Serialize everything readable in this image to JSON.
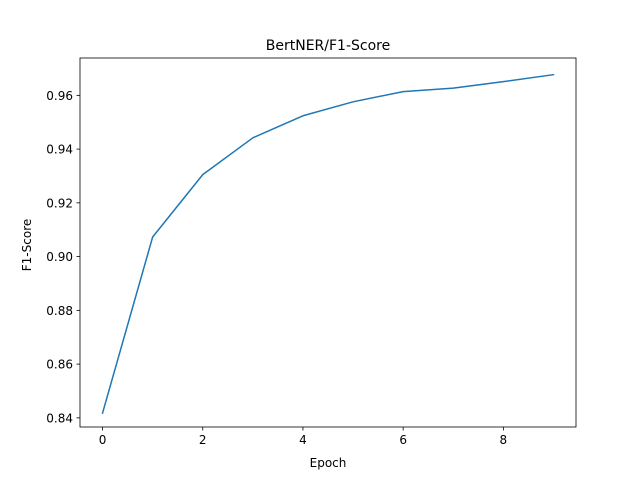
{
  "chart_data": {
    "type": "line",
    "title": "BertNER/F1-Score",
    "xlabel": "Epoch",
    "ylabel": "F1-Score",
    "xlim": [
      -0.45,
      9.45
    ],
    "ylim": [
      0.8366,
      0.9739
    ],
    "xticks": [
      0,
      2,
      4,
      6,
      8
    ],
    "xtick_labels": [
      "0",
      "2",
      "4",
      "6",
      "8"
    ],
    "yticks": [
      0.84,
      0.86,
      0.88,
      0.9,
      0.92,
      0.94,
      0.96
    ],
    "ytick_labels": [
      "0.84",
      "0.86",
      "0.88",
      "0.90",
      "0.92",
      "0.94",
      "0.96"
    ],
    "grid": false,
    "series": [
      {
        "x": [
          0,
          1,
          2,
          3,
          4,
          5,
          6,
          7,
          8,
          9
        ],
        "values": [
          0.8418,
          0.9073,
          0.9305,
          0.9442,
          0.9524,
          0.9576,
          0.9614,
          0.9627,
          0.9651,
          0.9677
        ],
        "color": "#1f77b4"
      }
    ]
  }
}
